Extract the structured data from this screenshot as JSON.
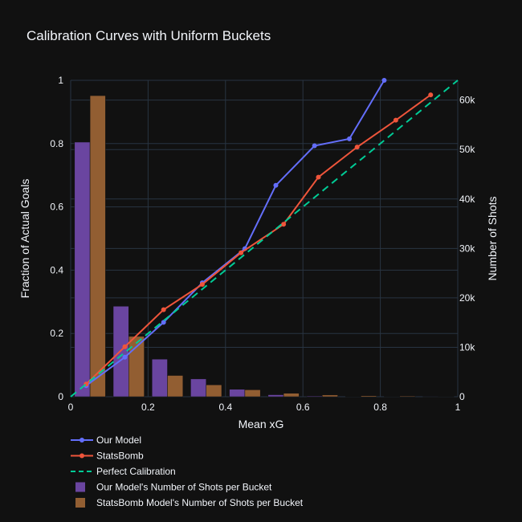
{
  "chart_data": {
    "type": "line",
    "title": "Calibration Curves with Uniform Buckets",
    "xlabel": "Mean xG",
    "ylabel": "Fraction of Actual Goals",
    "y2label": "Number of Shots",
    "xlim": [
      0,
      1
    ],
    "ylim": [
      0,
      1
    ],
    "y2lim": [
      0,
      64000
    ],
    "x_ticks": [
      "0",
      "0.2",
      "0.4",
      "0.6",
      "0.8",
      "1"
    ],
    "y_ticks": [
      "0",
      "0.2",
      "0.4",
      "0.6",
      "0.8",
      "1"
    ],
    "y2_ticks": [
      "0",
      "10k",
      "20k",
      "30k",
      "40k",
      "50k",
      "60k"
    ],
    "grid": true,
    "legend_position": "bottom-left",
    "series": [
      {
        "name": "Our Model",
        "kind": "line",
        "color": "#636efa",
        "x": [
          0.04,
          0.14,
          0.24,
          0.34,
          0.45,
          0.53,
          0.63,
          0.72,
          0.81
        ],
        "y": [
          0.035,
          0.125,
          0.235,
          0.36,
          0.468,
          0.668,
          0.793,
          0.815,
          1.0
        ]
      },
      {
        "name": "StatsBomb",
        "kind": "line",
        "color": "#ef553b",
        "x": [
          0.04,
          0.14,
          0.24,
          0.34,
          0.44,
          0.55,
          0.64,
          0.74,
          0.84,
          0.93
        ],
        "y": [
          0.04,
          0.158,
          0.275,
          0.355,
          0.455,
          0.545,
          0.694,
          0.789,
          0.874,
          0.954
        ]
      },
      {
        "name": "Perfect Calibration",
        "kind": "dash",
        "color": "#00cc96",
        "x": [
          0,
          1.0
        ],
        "y": [
          0,
          1.0
        ]
      },
      {
        "name": "Our Model's Number of Shots per Bucket",
        "kind": "bar",
        "color": "#6a45a0",
        "offset": -1,
        "categories": [
          0.05,
          0.15,
          0.25,
          0.35,
          0.45,
          0.55,
          0.65,
          0.75,
          0.85,
          0.95
        ],
        "values": [
          51500,
          18300,
          7600,
          3600,
          1500,
          400,
          150,
          80,
          40,
          20
        ]
      },
      {
        "name": "StatsBomb Model's Number of Shots per Bucket",
        "kind": "bar",
        "color": "#925e32",
        "offset": 1,
        "categories": [
          0.05,
          0.15,
          0.25,
          0.35,
          0.45,
          0.55,
          0.65,
          0.75,
          0.85,
          0.95
        ],
        "values": [
          60900,
          12200,
          4300,
          2400,
          1400,
          700,
          350,
          200,
          150,
          50
        ]
      }
    ]
  }
}
